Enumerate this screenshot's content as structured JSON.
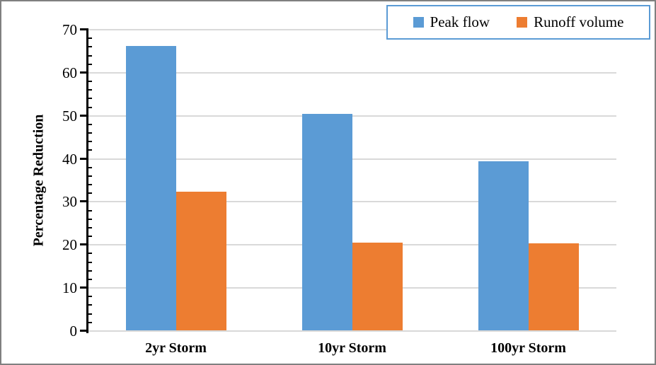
{
  "chart_data": {
    "type": "bar",
    "title": "",
    "categories": [
      "2yr Storm",
      "10yr Storm",
      "100yr Storm"
    ],
    "series": [
      {
        "name": "Peak flow",
        "color": "#5B9BD5",
        "values": [
          66.2,
          50.5,
          39.5
        ]
      },
      {
        "name": "Runoff volume",
        "color": "#ED7D31",
        "values": [
          32.4,
          20.5,
          20.3
        ]
      }
    ],
    "xlabel": "",
    "ylabel": "Percentage Reduction",
    "ylim": [
      0,
      70
    ],
    "y_major_step": 10,
    "y_minor_step": 2,
    "y_tick_labels": [
      "0",
      "10",
      "20",
      "30",
      "40",
      "50",
      "60",
      "70"
    ],
    "grid": "horizontal-major",
    "legend_position": "top-right"
  },
  "colors": {
    "bar_blue": "#5B9BD5",
    "bar_orange": "#ED7D31",
    "gridline": "#D9D9D9",
    "axis": "#000000",
    "legend_border": "#5B9BD5",
    "frame_border": "#808080",
    "text": "#000000"
  }
}
